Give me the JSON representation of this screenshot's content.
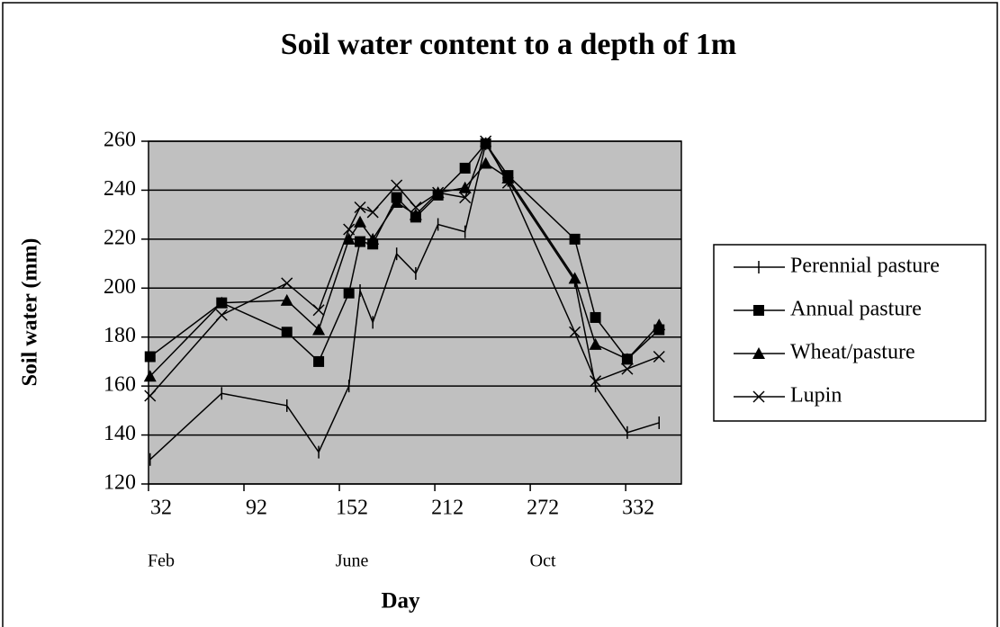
{
  "chart_data": {
    "type": "line",
    "title": "Soil water content to a depth of 1m",
    "xlabel": "Day",
    "ylabel": "Soil water (mm)",
    "x": [
      33,
      78,
      119,
      139,
      158,
      165,
      173,
      188,
      200,
      214,
      231,
      244,
      258,
      300,
      313,
      333,
      353
    ],
    "series": [
      {
        "name": "Perennial pasture",
        "color": "#000000",
        "marker": "dash",
        "values": [
          130,
          157,
          152,
          133,
          160,
          199,
          186,
          214,
          206,
          226,
          223,
          259,
          244,
          203,
          160,
          141,
          145
        ]
      },
      {
        "name": "Annual pasture",
        "color": "#000000",
        "marker": "square",
        "values": [
          172,
          194,
          182,
          170,
          198,
          219,
          218,
          237,
          229,
          238,
          249,
          259,
          246,
          220,
          188,
          171,
          183
        ]
      },
      {
        "name": "Wheat/pasture",
        "color": "#000000",
        "marker": "triangle",
        "values": [
          164,
          194,
          195,
          183,
          220,
          227,
          220,
          235,
          230,
          239,
          241,
          251,
          245,
          204,
          177,
          171,
          185
        ]
      },
      {
        "name": "Lupin",
        "color": "#000000",
        "marker": "cross",
        "values": [
          156,
          189,
          202,
          191,
          224,
          233,
          231,
          242,
          233,
          239,
          237,
          260,
          243,
          182,
          162,
          167,
          172
        ]
      }
    ],
    "xlim": [
      32,
      367
    ],
    "xticks": [
      32,
      92,
      152,
      212,
      272,
      332
    ],
    "month_labels": [
      {
        "value": 32,
        "label": "Feb"
      },
      {
        "value": 152,
        "label": "June"
      },
      {
        "value": 272,
        "label": "Oct"
      }
    ],
    "ylim": [
      120,
      260
    ],
    "yticks": [
      120,
      140,
      160,
      180,
      200,
      220,
      240,
      260
    ],
    "grid": true,
    "plot_background": "#c0c0c0",
    "legend": "right"
  }
}
